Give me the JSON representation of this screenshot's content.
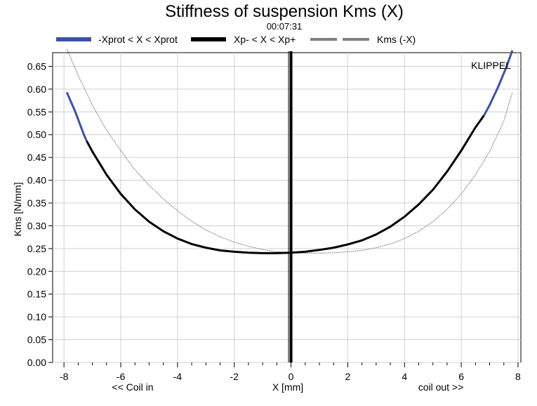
{
  "chart_data": {
    "type": "line",
    "title": "Stiffness of suspension Kms (X)",
    "subtitle": "00:07:31",
    "xlabel": "X [mm]",
    "xlabel_left": "<< Coil in",
    "xlabel_right": "coil out >>",
    "ylabel": "Kms [N/mm]",
    "watermark": "KLIPPEL",
    "xlim": [
      -8.4,
      8.1
    ],
    "ylim": [
      0,
      0.68
    ],
    "xticks": [
      -8,
      -6,
      -4,
      -2,
      0,
      2,
      4,
      6,
      8
    ],
    "xtick_labels": [
      "-8",
      "-6",
      "-4",
      "-2",
      "0",
      "2",
      "4",
      "6",
      "8"
    ],
    "yticks": [
      0.0,
      0.05,
      0.1,
      0.15,
      0.2,
      0.25,
      0.3,
      0.35,
      0.4,
      0.45,
      0.5,
      0.55,
      0.6,
      0.65
    ],
    "ytick_labels": [
      "0.00",
      "0.05",
      "0.10",
      "0.15",
      "0.20",
      "0.25",
      "0.30",
      "0.35",
      "0.40",
      "0.45",
      "0.50",
      "0.55",
      "0.60",
      "0.65"
    ],
    "grid": true,
    "legend_position": "top",
    "series": [
      {
        "name": "-Xprot < X < Xprot",
        "color": "#3a53a4",
        "style": "solid",
        "x": [
          -7.9,
          -7.6,
          -7.3,
          -7.2,
          6.8,
          7.0,
          7.3,
          7.6,
          7.8
        ],
        "y": [
          0.593,
          0.55,
          0.5,
          0.486,
          0.542,
          0.565,
          0.605,
          0.65,
          0.685
        ]
      },
      {
        "name": "Xp- < X < Xp+",
        "color": "#000000",
        "style": "solid",
        "x": [
          -7.2,
          -7.0,
          -6.5,
          -6.0,
          -5.5,
          -5.0,
          -4.5,
          -4.0,
          -3.5,
          -3.0,
          -2.5,
          -2.0,
          -1.5,
          -1.0,
          -0.5,
          0.0,
          0.5,
          1.0,
          1.5,
          2.0,
          2.5,
          3.0,
          3.5,
          4.0,
          4.5,
          5.0,
          5.5,
          6.0,
          6.5,
          6.8
        ],
        "y": [
          0.486,
          0.463,
          0.412,
          0.37,
          0.336,
          0.309,
          0.288,
          0.272,
          0.26,
          0.252,
          0.246,
          0.243,
          0.241,
          0.24,
          0.24,
          0.241,
          0.243,
          0.247,
          0.252,
          0.259,
          0.268,
          0.281,
          0.298,
          0.32,
          0.347,
          0.379,
          0.419,
          0.465,
          0.516,
          0.542
        ]
      },
      {
        "name": "Kms (-X)",
        "color": "#808080",
        "style": "dashed",
        "x": [
          -7.9,
          -7.5,
          -7.0,
          -6.5,
          -6.0,
          -5.5,
          -5.0,
          -4.5,
          -4.0,
          -3.5,
          -3.0,
          -2.5,
          -2.0,
          -1.5,
          -1.0,
          -0.5,
          0.0,
          0.5,
          1.0,
          1.5,
          2.0,
          2.5,
          3.0,
          3.5,
          4.0,
          4.5,
          5.0,
          5.5,
          6.0,
          6.5,
          7.0,
          7.5,
          7.8
        ],
        "y": [
          0.688,
          0.63,
          0.565,
          0.51,
          0.465,
          0.423,
          0.389,
          0.359,
          0.333,
          0.31,
          0.291,
          0.276,
          0.264,
          0.255,
          0.248,
          0.243,
          0.241,
          0.24,
          0.24,
          0.241,
          0.243,
          0.246,
          0.252,
          0.26,
          0.272,
          0.288,
          0.309,
          0.336,
          0.37,
          0.412,
          0.463,
          0.53,
          0.593
        ]
      }
    ],
    "vertical_marker": {
      "x": 0,
      "color": "#000000"
    }
  }
}
